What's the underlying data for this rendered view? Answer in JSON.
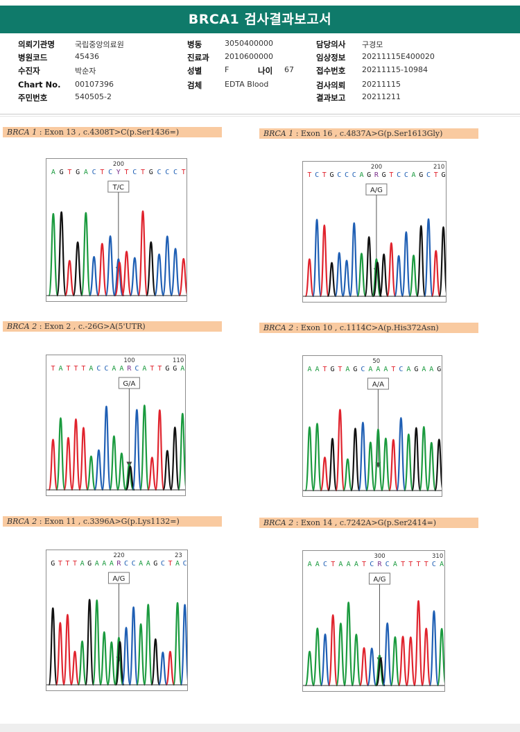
{
  "report": {
    "title": "BRCA1 검사결과보고서",
    "info_rows": [
      [
        {
          "label": "의뢰기관명",
          "value": "국립중앙의료원"
        },
        {
          "label": "병동",
          "value": "3050400000"
        },
        {
          "label": "담당의사",
          "value": "구경모"
        }
      ],
      [
        {
          "label": "병원코드",
          "value": "45436"
        },
        {
          "label": "진료과",
          "value": "2010600000"
        },
        {
          "label": "임상정보",
          "value": "20211115E400020"
        }
      ],
      [
        {
          "label": "수진자",
          "value": "박순자"
        },
        {
          "label": "성별",
          "value": "F"
        },
        {
          "label": "접수번호",
          "value": "20211115-10984"
        }
      ],
      [
        {
          "label": "Chart No.",
          "value": "00107396"
        },
        {
          "label": "검체",
          "value": "EDTA Blood"
        },
        {
          "label": "검사의뢰",
          "value": "20211115"
        }
      ],
      [
        {
          "label": "주민번호",
          "value": "540505-2"
        },
        {
          "label": "",
          "value": ""
        },
        {
          "label": "결과보고",
          "value": "20211211"
        }
      ]
    ],
    "age": {
      "label": "나이",
      "value": "67"
    }
  },
  "colors": {
    "banner": "#0f7a6a",
    "caption_bg": "#f9caa0",
    "A": "#1a9a3e",
    "C": "#1f5fb4",
    "G": "#111111",
    "T": "#e0232d"
  },
  "panels": [
    {
      "gene": "BRCA 1",
      "detail": ": Exon 13 , c.4308T>C(p.Ser1436=)",
      "pos_left": "200",
      "pos_right": "",
      "sequence": "AGTGACTCYTCTGCCCT",
      "call": "T/C"
    },
    {
      "gene": "BRCA 1",
      "detail": ": Exon 16 , c.4837A>G(p.Ser1613Gly)",
      "pos_left": "200",
      "pos_right": "210",
      "sequence": "TCTGCCCAGRGTCCAGCTG",
      "call": "A/G"
    },
    {
      "gene": "BRCA 2",
      "detail": ": Exon 2 , c.-26G>A(5'UTR)",
      "pos_left": "100",
      "pos_right": "110",
      "sequence": "TATTTACCAARCATTGGA",
      "call": "G/A"
    },
    {
      "gene": "BRCA 2",
      "detail": ": Exon 10 , c.1114C>A(p.His372Asn)",
      "pos_left": "50",
      "pos_right": "",
      "sequence": "AATGTAGCAAATCAGAAG",
      "call": "A/A"
    },
    {
      "gene": "BRCA 2",
      "detail": ": Exon 11 , c.3396A>G(p.Lys1132=)",
      "pos_left": "220",
      "pos_right": "23",
      "sequence": "GTTTAGAAARCCAAGCTAC",
      "call": "A/G"
    },
    {
      "gene": "BRCA 2",
      "detail": ": Exon 14 , c.7242A>G(p.Ser2414=)",
      "pos_left": "300",
      "pos_right": "310",
      "sequence": "AACTAAATCRCATTTTCA",
      "call": "A/G"
    }
  ]
}
